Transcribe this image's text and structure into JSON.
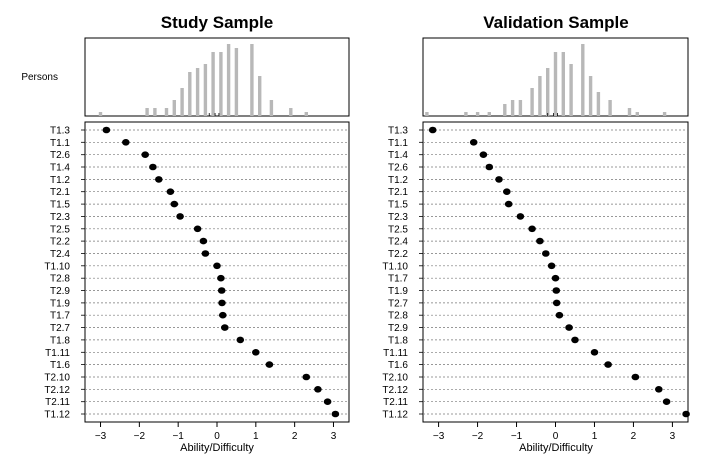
{
  "chart_data": [
    {
      "type": "scatter",
      "title": "Study Sample",
      "xlabel": "Ability/Difficulty",
      "hist_label": "Persons",
      "xlim": [
        -3.4,
        3.4
      ],
      "xticks": [
        -3,
        -2,
        -1,
        0,
        1,
        2,
        3
      ],
      "histogram": {
        "bin_centers": [
          -3.0,
          -2.1,
          -1.8,
          -1.6,
          -1.3,
          -1.1,
          -0.9,
          -0.7,
          -0.5,
          -0.3,
          -0.1,
          0.1,
          0.3,
          0.5,
          0.7,
          0.9,
          1.1,
          1.4,
          1.9,
          2.3,
          2.8
        ],
        "counts": [
          1,
          0,
          2,
          2,
          2,
          4,
          7,
          11,
          12,
          13,
          16,
          16,
          18,
          17,
          0,
          18,
          10,
          4,
          2,
          1,
          0
        ]
      },
      "items": [
        "T1.3",
        "T1.1",
        "T2.6",
        "T1.4",
        "T1.2",
        "T2.1",
        "T1.5",
        "T2.3",
        "T2.5",
        "T2.2",
        "T2.4",
        "T1.10",
        "T2.8",
        "T2.9",
        "T1.9",
        "T1.7",
        "T2.7",
        "T1.8",
        "T1.11",
        "T1.6",
        "T2.10",
        "T2.12",
        "T2.11",
        "T1.12"
      ],
      "values": [
        -2.85,
        -2.35,
        -1.85,
        -1.65,
        -1.5,
        -1.2,
        -1.1,
        -0.95,
        -0.5,
        -0.35,
        -0.3,
        0.0,
        0.1,
        0.12,
        0.13,
        0.15,
        0.2,
        0.6,
        1.0,
        1.35,
        2.3,
        2.6,
        2.85,
        3.05
      ]
    },
    {
      "type": "scatter",
      "title": "Validation Sample",
      "xlabel": "Ability/Difficulty",
      "hist_label": "",
      "xlim": [
        -3.4,
        3.4
      ],
      "xticks": [
        -3,
        -2,
        -1,
        0,
        1,
        2,
        3
      ],
      "histogram": {
        "bin_centers": [
          -3.3,
          -2.3,
          -2.0,
          -1.7,
          -1.3,
          -1.1,
          -0.9,
          -0.6,
          -0.4,
          -0.2,
          0.0,
          0.2,
          0.4,
          0.7,
          0.9,
          1.1,
          1.4,
          1.9,
          2.1,
          2.8
        ],
        "counts": [
          1,
          1,
          1,
          1,
          3,
          4,
          4,
          7,
          10,
          12,
          16,
          16,
          13,
          18,
          10,
          6,
          4,
          2,
          1,
          1
        ]
      },
      "items": [
        "T1.3",
        "T1.1",
        "T1.4",
        "T2.6",
        "T1.2",
        "T2.1",
        "T1.5",
        "T2.3",
        "T2.5",
        "T2.4",
        "T2.2",
        "T1.10",
        "T1.7",
        "T1.9",
        "T2.7",
        "T2.8",
        "T2.9",
        "T1.8",
        "T1.11",
        "T1.6",
        "T2.10",
        "T2.12",
        "T2.11",
        "T1.12"
      ],
      "values": [
        -3.15,
        -2.1,
        -1.85,
        -1.7,
        -1.45,
        -1.25,
        -1.2,
        -0.9,
        -0.6,
        -0.4,
        -0.25,
        -0.1,
        0.0,
        0.02,
        0.03,
        0.1,
        0.35,
        0.5,
        1.0,
        1.35,
        2.05,
        2.65,
        2.85,
        3.35
      ]
    }
  ]
}
